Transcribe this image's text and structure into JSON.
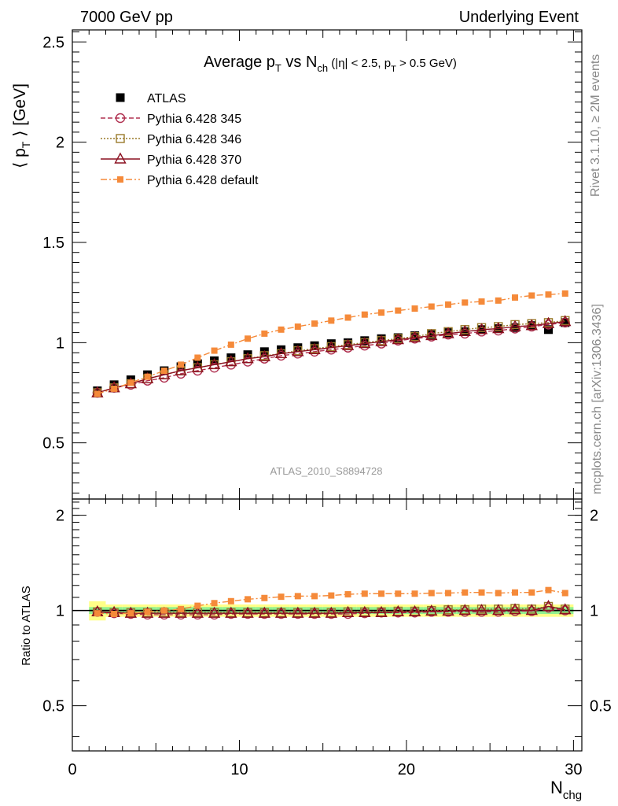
{
  "header": {
    "left": "7000 GeV pp",
    "right": "Underlying Event"
  },
  "side_labels": {
    "rivet": "Rivet 3.1.10, ≥ 2M events",
    "mcplots": "mcplots.cern.ch [arXiv:1306.3436]"
  },
  "chart_data": [
    {
      "type": "scatter",
      "title": "Average p_T vs N_ch (|η| < 2.5, p_T > 0.5 GeV)",
      "title_parts": {
        "t1": "Average p",
        "t1sub": "T",
        "t2": " vs N",
        "t2sub": "ch",
        "t3": " (|η| < 2.5, p",
        "t3sub": "T",
        "t4": " > 0.5 GeV)"
      },
      "ylabel": "⟨ p_T ⟩ [GeV]",
      "ylabel_parts": {
        "a": "⟨ p",
        "sub": "T",
        "b": " ⟩ [GeV]"
      },
      "xlabel": "N_chg",
      "watermark": "ATLAS_2010_S8894728",
      "xlim": [
        0,
        30.5
      ],
      "ylim": [
        0.22,
        2.56
      ],
      "yticks": [
        "0.5",
        "1",
        "1.5",
        "2",
        "2.5"
      ],
      "x": [
        1.5,
        2.5,
        3.5,
        4.5,
        5.5,
        6.5,
        7.5,
        8.5,
        9.5,
        10.5,
        11.5,
        12.5,
        13.5,
        14.5,
        15.5,
        16.5,
        17.5,
        18.5,
        19.5,
        20.5,
        21.5,
        22.5,
        23.5,
        24.5,
        25.5,
        26.5,
        27.5,
        28.5,
        29.5
      ],
      "series": [
        {
          "name": "ATLAS",
          "style": "data",
          "color": "#000000",
          "values": [
            0.76,
            0.79,
            0.815,
            0.84,
            0.86,
            0.88,
            0.895,
            0.91,
            0.925,
            0.94,
            0.955,
            0.965,
            0.975,
            0.985,
            0.995,
            1.0,
            1.01,
            1.02,
            1.025,
            1.035,
            1.04,
            1.05,
            1.055,
            1.065,
            1.07,
            1.075,
            1.085,
            1.065,
            1.1
          ]
        },
        {
          "name": "Pythia 6.428 345",
          "style": "circle",
          "color": "#b03050",
          "values": [
            0.75,
            0.775,
            0.79,
            0.81,
            0.825,
            0.845,
            0.86,
            0.875,
            0.89,
            0.905,
            0.92,
            0.935,
            0.945,
            0.955,
            0.965,
            0.975,
            0.985,
            0.995,
            1.01,
            1.02,
            1.03,
            1.04,
            1.045,
            1.055,
            1.06,
            1.07,
            1.08,
            1.09,
            1.1
          ]
        },
        {
          "name": "Pythia 6.428 346",
          "style": "square-open",
          "color": "#9a7a2a",
          "values": [
            0.75,
            0.775,
            0.795,
            0.82,
            0.84,
            0.86,
            0.875,
            0.89,
            0.905,
            0.92,
            0.935,
            0.945,
            0.96,
            0.97,
            0.98,
            0.99,
            1.0,
            1.01,
            1.02,
            1.03,
            1.045,
            1.055,
            1.065,
            1.075,
            1.08,
            1.09,
            1.095,
            1.1,
            1.11
          ]
        },
        {
          "name": "Pythia 6.428 370",
          "style": "triangle",
          "color": "#8b1020",
          "values": [
            0.75,
            0.775,
            0.795,
            0.82,
            0.84,
            0.86,
            0.875,
            0.89,
            0.905,
            0.92,
            0.93,
            0.945,
            0.955,
            0.965,
            0.975,
            0.985,
            0.995,
            1.005,
            1.015,
            1.025,
            1.035,
            1.045,
            1.055,
            1.065,
            1.07,
            1.08,
            1.085,
            1.095,
            1.105
          ]
        },
        {
          "name": "Pythia 6.428 default",
          "style": "square-filled",
          "color": "#f58a3a",
          "values": [
            0.745,
            0.77,
            0.8,
            0.83,
            0.86,
            0.89,
            0.925,
            0.96,
            0.99,
            1.02,
            1.045,
            1.065,
            1.08,
            1.095,
            1.11,
            1.125,
            1.14,
            1.15,
            1.16,
            1.17,
            1.18,
            1.19,
            1.2,
            1.205,
            1.21,
            1.225,
            1.235,
            1.24,
            1.245
          ]
        }
      ]
    },
    {
      "type": "scatter",
      "title": "",
      "ylabel": "Ratio to ATLAS",
      "xlabel": "N_chg",
      "xlabel_parts": {
        "a": "N",
        "sub": "chg"
      },
      "xlim": [
        0,
        30.5
      ],
      "xticks": [
        "0",
        "10",
        "20",
        "30"
      ],
      "ylim": [
        0.36,
        2.25
      ],
      "yticks": [
        "0.5",
        "1",
        "2"
      ],
      "band_inner": 0.025,
      "band_outer": 0.045,
      "band_first_outer": 0.07,
      "ratios": {
        "Pythia 6.428 345": [
          0.99,
          0.98,
          0.975,
          0.97,
          0.97,
          0.97,
          0.97,
          0.97,
          0.975,
          0.975,
          0.975,
          0.975,
          0.975,
          0.975,
          0.975,
          0.975,
          0.98,
          0.985,
          0.985,
          0.985,
          0.99,
          0.99,
          0.99,
          0.99,
          0.99,
          0.995,
          0.995,
          1.02,
          1.0
        ],
        "Pythia 6.428 346": [
          0.99,
          0.985,
          0.985,
          0.985,
          0.985,
          0.985,
          0.985,
          0.985,
          0.985,
          0.985,
          0.985,
          0.985,
          0.985,
          0.985,
          0.985,
          0.99,
          0.99,
          0.99,
          0.995,
          0.995,
          1.0,
          1.005,
          1.005,
          1.01,
          1.01,
          1.015,
          1.01,
          1.03,
          1.01
        ],
        "Pythia 6.428 370": [
          0.99,
          0.985,
          0.98,
          0.98,
          0.98,
          0.98,
          0.98,
          0.98,
          0.98,
          0.98,
          0.98,
          0.98,
          0.98,
          0.98,
          0.98,
          0.985,
          0.985,
          0.985,
          0.99,
          0.99,
          0.995,
          0.995,
          1.0,
          1.0,
          1.0,
          1.005,
          1.0,
          1.03,
          1.005
        ],
        "Pythia 6.428 default": [
          0.98,
          0.975,
          0.98,
          0.99,
          1.0,
          1.01,
          1.035,
          1.055,
          1.07,
          1.085,
          1.095,
          1.105,
          1.11,
          1.11,
          1.115,
          1.125,
          1.13,
          1.13,
          1.13,
          1.13,
          1.135,
          1.135,
          1.14,
          1.14,
          1.135,
          1.14,
          1.14,
          1.16,
          1.135
        ]
      }
    }
  ]
}
